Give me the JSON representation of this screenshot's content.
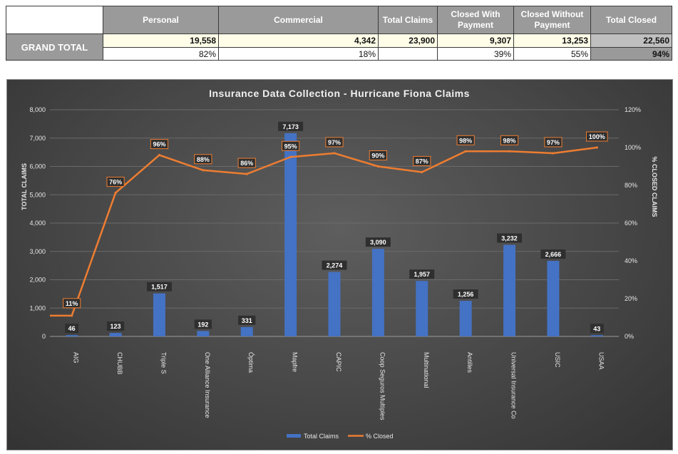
{
  "summary": {
    "headers": [
      "Personal",
      "Commercial",
      "Total Claims",
      "Closed With Payment",
      "Closed Without Payment",
      "Total Closed"
    ],
    "row_label": "GRAND TOTAL",
    "values": [
      "19,558",
      "4,342",
      "23,900",
      "9,307",
      "13,253",
      "22,560"
    ],
    "percents": [
      "82%",
      "18%",
      "",
      "39%",
      "55%",
      "94%"
    ]
  },
  "chart_data": {
    "type": "bar",
    "title": "Insurance Data Collection - Hurricane Fiona Claims",
    "categories": [
      "AIG",
      "CHUBB",
      "Triple S",
      "One Alliance Insurance",
      "Óptima",
      "Mapfre",
      "CAPIC",
      "Coop Seguros Multiples",
      "Multinational",
      "Antilles",
      "Universal Insurance Co",
      "USIC",
      "USAA"
    ],
    "ylabel": "TOTAL CLAIMS",
    "y2label": "% CLOSED CLAIMS",
    "ylim": [
      0,
      8000
    ],
    "y2lim": [
      0,
      120
    ],
    "yticks": [
      "0",
      "1,000",
      "2,000",
      "3,000",
      "4,000",
      "5,000",
      "6,000",
      "7,000",
      "8,000"
    ],
    "y2ticks": [
      "0%",
      "20%",
      "40%",
      "60%",
      "80%",
      "100%",
      "120%"
    ],
    "series": [
      {
        "name": "Total Claims",
        "kind": "bar",
        "color": "#4472c4",
        "values": [
          46,
          123,
          1517,
          192,
          331,
          7173,
          2274,
          3090,
          1957,
          1256,
          3232,
          2666,
          43
        ],
        "labels": [
          "46",
          "123",
          "1,517",
          "192",
          "331",
          "7,173",
          "2,274",
          "3,090",
          "1,957",
          "1,256",
          "3,232",
          "2,666",
          "43"
        ]
      },
      {
        "name": "% Closed",
        "kind": "line",
        "axis": "secondary",
        "color": "#ed7d31",
        "values": [
          11,
          76,
          96,
          88,
          86,
          95,
          97,
          90,
          87,
          98,
          98,
          97,
          100
        ],
        "labels": [
          "11%",
          "76%",
          "96%",
          "88%",
          "86%",
          "95%",
          "97%",
          "90%",
          "87%",
          "98%",
          "98%",
          "97%",
          "100%"
        ]
      }
    ],
    "grid": true,
    "legend": "bottom"
  }
}
